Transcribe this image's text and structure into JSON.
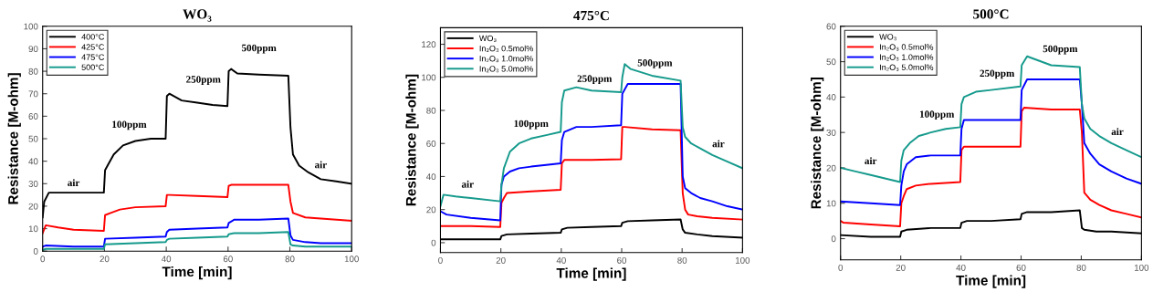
{
  "chart_data": [
    {
      "type": "line",
      "title": "WO₃",
      "xlabel": "Time [min]",
      "ylabel": "Resistance [M-ohm]",
      "xlim": [
        0,
        100
      ],
      "xticks": [
        0,
        20,
        40,
        60,
        80,
        100
      ],
      "ylim": [
        0,
        100
      ],
      "yticks": [
        0,
        10,
        20,
        30,
        40,
        50,
        60,
        70,
        80,
        90,
        100
      ],
      "grid": false,
      "legend": "top left",
      "marker": "none",
      "line_style": "solid",
      "series": [
        {
          "name": "400°C",
          "color": "#000000",
          "x": [
            0,
            0.5,
            2,
            10,
            19.8,
            20.2,
            21,
            23,
            26,
            30,
            35,
            39.8,
            40.2,
            41,
            45,
            50,
            55,
            59.8,
            60.2,
            61,
            63,
            70,
            79.5,
            80.2,
            81,
            83,
            86,
            90,
            95,
            100
          ],
          "values": [
            15,
            22,
            26,
            26,
            26,
            36,
            38,
            43,
            47,
            49,
            50,
            50,
            69,
            70,
            67,
            66,
            65,
            64.5,
            80,
            81,
            79,
            78.5,
            78,
            55,
            43,
            38,
            35,
            32,
            31,
            30
          ]
        },
        {
          "name": "425°C",
          "color": "#ff0000",
          "x": [
            0,
            1,
            5,
            10,
            19.8,
            20.2,
            22,
            25,
            30,
            39.8,
            40.2,
            41,
            50,
            59.8,
            60.2,
            61,
            70,
            79.5,
            80.2,
            81,
            85,
            90,
            100
          ],
          "values": [
            8,
            11.5,
            10.5,
            9.5,
            9,
            16,
            17,
            18.5,
            19.5,
            20,
            25,
            25,
            24.5,
            24,
            29,
            29.5,
            29.5,
            29.5,
            22,
            17,
            15,
            14.5,
            13.5
          ]
        },
        {
          "name": "475°C",
          "color": "#0000ff",
          "x": [
            0,
            1,
            10,
            19.8,
            20.2,
            30,
            39.8,
            40.2,
            41,
            50,
            59.8,
            60.2,
            62,
            70,
            79.5,
            80.2,
            81,
            85,
            90,
            100
          ],
          "values": [
            2,
            2.5,
            2,
            2,
            5.5,
            6,
            6.5,
            8.5,
            9.5,
            10,
            10.5,
            12.5,
            14,
            14,
            14.5,
            7,
            5,
            4,
            3.5,
            3.5
          ]
        },
        {
          "name": "500°C",
          "color": "#159a8c",
          "x": [
            0,
            1,
            10,
            19.8,
            20.2,
            30,
            39.8,
            40.2,
            41,
            50,
            59.8,
            60.2,
            62,
            70,
            79.5,
            80.2,
            81,
            85,
            90,
            100
          ],
          "values": [
            0.5,
            1,
            1,
            1,
            3,
            3.5,
            4,
            5,
            5.5,
            6,
            6.5,
            7.5,
            8,
            8,
            8.5,
            3,
            2.5,
            2,
            2,
            2
          ]
        }
      ],
      "annotations": [
        "air",
        "100ppm",
        "250ppm",
        "500ppm",
        "air"
      ]
    },
    {
      "type": "line",
      "title": "475°C",
      "xlabel": "Time [min]",
      "ylabel": "Resistance [M-ohm]",
      "xlim": [
        0,
        100
      ],
      "xticks": [
        0,
        20,
        40,
        60,
        80,
        100
      ],
      "ylim": [
        -6,
        130
      ],
      "yticks": [
        0,
        20,
        40,
        60,
        80,
        100,
        120
      ],
      "grid": false,
      "legend": "top left",
      "marker": "none",
      "line_style": "solid",
      "series": [
        {
          "name": "WO₃",
          "color": "#000000",
          "x": [
            0,
            19.8,
            20.2,
            22,
            30,
            39.8,
            40.2,
            42,
            50,
            59.8,
            60.2,
            62,
            70,
            79.5,
            80.2,
            81,
            85,
            90,
            100
          ],
          "values": [
            2,
            2,
            4,
            5,
            5.5,
            6,
            8,
            9,
            9.5,
            10,
            12,
            13,
            13.5,
            14,
            8,
            6,
            5,
            4,
            3
          ]
        },
        {
          "name": "In₂O₃ 0.5mol%",
          "color": "#ff0000",
          "x": [
            0,
            10,
            19.8,
            20.2,
            21,
            22,
            30,
            39.8,
            40.2,
            41,
            50,
            59.8,
            60.2,
            61,
            70,
            79.5,
            80.2,
            81,
            82,
            85,
            90,
            100
          ],
          "values": [
            10,
            10,
            9.5,
            24,
            27,
            30,
            31,
            32,
            48,
            50,
            50,
            50.5,
            70,
            70,
            68.5,
            68,
            30,
            20,
            17,
            16,
            15,
            14
          ]
        },
        {
          "name": "In₂O₃ 1.0mol%",
          "color": "#0000ff",
          "x": [
            0,
            2,
            10,
            19.8,
            20.2,
            21,
            23,
            26,
            30,
            35,
            39.8,
            40.2,
            41,
            45,
            50,
            59.8,
            60.2,
            62,
            70,
            79.5,
            80.2,
            81,
            83,
            86,
            90,
            95,
            100
          ],
          "values": [
            19,
            17,
            15,
            13.5,
            35,
            40,
            43,
            45,
            46,
            47,
            48,
            62,
            67,
            70,
            70,
            71,
            90,
            96,
            96,
            96,
            40,
            33,
            30,
            27,
            25,
            22,
            20
          ]
        },
        {
          "name": "In₂O₃ 5.0mol%",
          "color": "#159a8c",
          "x": [
            0,
            1,
            5,
            10,
            19.8,
            20.2,
            21,
            23,
            26,
            30,
            35,
            39.8,
            40.2,
            41,
            45,
            50,
            59.8,
            60.2,
            61,
            63,
            70,
            79.5,
            80.2,
            81,
            83,
            86,
            90,
            95,
            100
          ],
          "values": [
            22,
            29,
            28,
            27,
            25,
            35,
            45,
            55,
            60,
            63,
            65,
            67,
            85,
            92,
            94,
            92,
            91,
            100,
            108,
            105,
            101,
            98,
            70,
            64,
            60,
            57,
            53,
            49,
            45
          ]
        }
      ],
      "annotations": [
        "air",
        "100ppm",
        "250ppm",
        "500ppm",
        "air"
      ]
    },
    {
      "type": "line",
      "title": "500°C",
      "xlabel": "Time [min]",
      "ylabel": "Resistance [M-ohm]",
      "xlim": [
        0,
        100
      ],
      "xticks": [
        0,
        20,
        40,
        60,
        80,
        100
      ],
      "ylim": [
        -6,
        60
      ],
      "yticks": [
        0,
        10,
        20,
        30,
        40,
        50,
        60
      ],
      "grid": false,
      "legend": "top left",
      "marker": "none",
      "line_style": "solid",
      "series": [
        {
          "name": "WO₃",
          "color": "#000000",
          "x": [
            0,
            10,
            19.8,
            20.2,
            22,
            30,
            39.8,
            40.2,
            42,
            50,
            59.8,
            60.2,
            62,
            70,
            79.5,
            80.2,
            81,
            85,
            90,
            100
          ],
          "values": [
            1,
            0.5,
            0.5,
            2,
            2.5,
            3,
            3,
            4.5,
            5,
            5,
            5.5,
            7,
            7.5,
            7.5,
            8,
            3,
            2.5,
            2,
            2,
            1.5
          ]
        },
        {
          "name": "In₂O₃ 0.5mol%",
          "color": "#ff0000",
          "x": [
            0,
            1,
            10,
            19.8,
            20.2,
            21,
            22,
            25,
            30,
            39.8,
            40.2,
            41,
            50,
            59.8,
            60.2,
            61,
            70,
            79.5,
            80.2,
            81,
            83,
            86,
            90,
            95,
            100
          ],
          "values": [
            5,
            4.5,
            4,
            3.5,
            10,
            12,
            14,
            15,
            15.5,
            16,
            25,
            26,
            26,
            26,
            36,
            37,
            36.5,
            36.5,
            30,
            13,
            11,
            9.5,
            8,
            7,
            6
          ]
        },
        {
          "name": "In₂O₃ 1.0mol%",
          "color": "#0000ff",
          "x": [
            0,
            10,
            19.8,
            20.2,
            21,
            22,
            25,
            30,
            39.8,
            40.2,
            41,
            50,
            59.8,
            60.2,
            62,
            70,
            79.5,
            80.2,
            81,
            83,
            86,
            90,
            95,
            100
          ],
          "values": [
            10.5,
            10,
            9.5,
            15,
            19,
            21,
            23,
            23.5,
            23.5,
            31,
            33.5,
            33.5,
            33.5,
            42,
            45,
            45,
            45,
            38,
            27,
            24,
            21,
            19,
            17,
            15.5
          ]
        },
        {
          "name": "In₂O₃ 5.0mol%",
          "color": "#159a8c",
          "x": [
            0,
            5,
            10,
            19.8,
            20.2,
            21,
            23,
            26,
            30,
            35,
            39.8,
            40.2,
            41,
            45,
            50,
            59.8,
            60.2,
            62,
            70,
            79.5,
            80.2,
            81,
            83,
            86,
            90,
            95,
            100
          ],
          "values": [
            20,
            19,
            18,
            16,
            22,
            25,
            27,
            29,
            30,
            31,
            31.5,
            38,
            40,
            41.5,
            42,
            43,
            49,
            51.5,
            49,
            48.5,
            38,
            34,
            31,
            29,
            27,
            25,
            23
          ]
        }
      ],
      "annotations": [
        "air",
        "100ppm",
        "250ppm",
        "500ppm",
        "air"
      ]
    }
  ]
}
